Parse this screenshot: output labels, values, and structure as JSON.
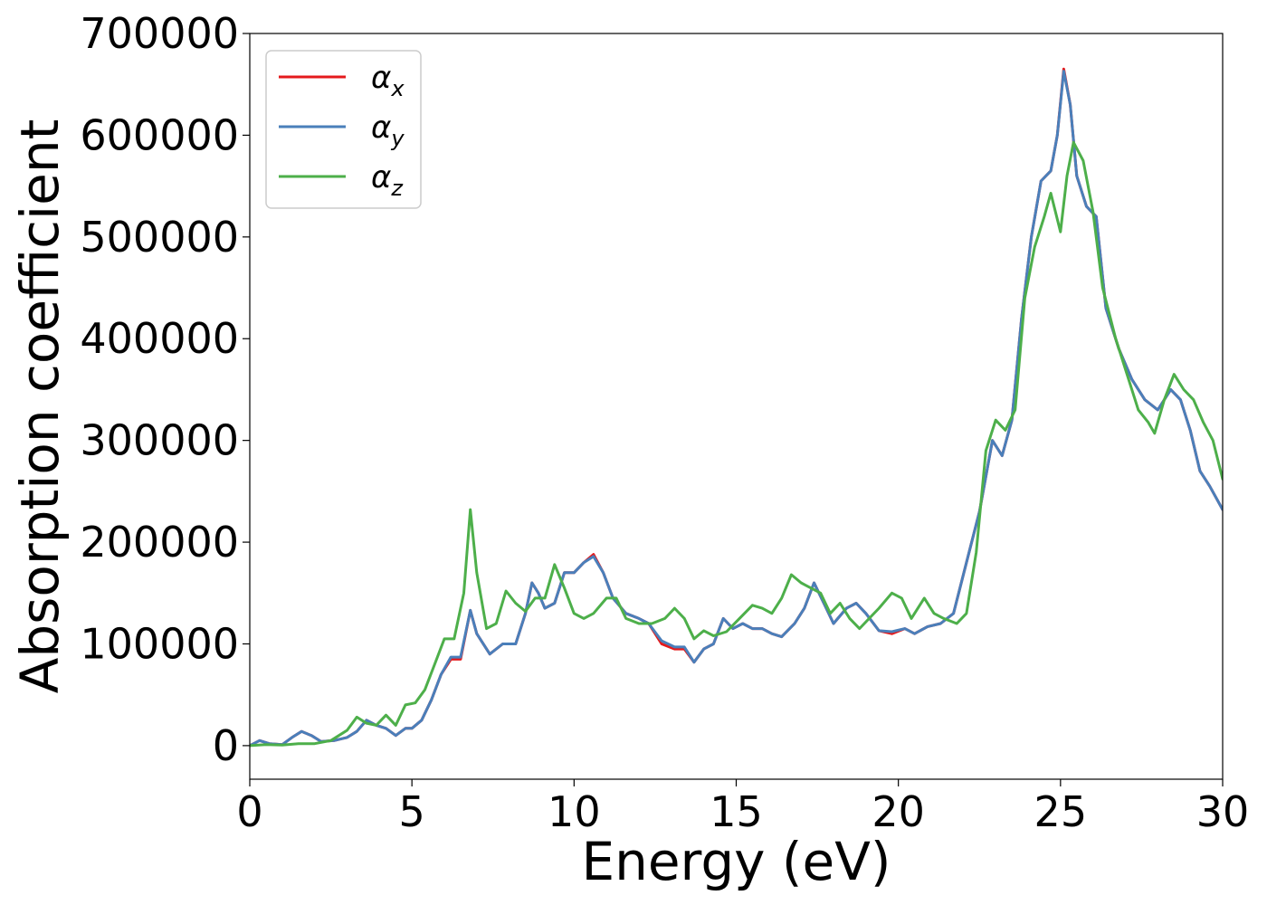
{
  "chart_data": {
    "type": "line",
    "xlabel": "Energy (eV)",
    "ylabel": "Absorption coefficient",
    "xlim": [
      0,
      30
    ],
    "ylim": [
      -33000,
      700000
    ],
    "x_ticks": [
      "0",
      "5",
      "10",
      "15",
      "20",
      "25",
      "30"
    ],
    "y_ticks": [
      "0",
      "100000",
      "200000",
      "300000",
      "400000",
      "500000",
      "600000",
      "700000"
    ],
    "legend_position": "top-left",
    "grid": false,
    "series": [
      {
        "name": "α",
        "subscript": "x",
        "color": "#e41a1c",
        "points": [
          [
            0,
            0
          ],
          [
            0.3,
            5000
          ],
          [
            0.6,
            2000
          ],
          [
            1.0,
            1000
          ],
          [
            1.3,
            8000
          ],
          [
            1.6,
            14000
          ],
          [
            1.9,
            10000
          ],
          [
            2.2,
            4000
          ],
          [
            2.6,
            5000
          ],
          [
            3.0,
            8000
          ],
          [
            3.3,
            14000
          ],
          [
            3.6,
            25000
          ],
          [
            3.9,
            20000
          ],
          [
            4.2,
            17000
          ],
          [
            4.5,
            10000
          ],
          [
            4.8,
            17000
          ],
          [
            5.0,
            17000
          ],
          [
            5.3,
            25000
          ],
          [
            5.6,
            45000
          ],
          [
            5.9,
            70000
          ],
          [
            6.2,
            85000
          ],
          [
            6.5,
            85000
          ],
          [
            6.8,
            133000
          ],
          [
            7.0,
            110000
          ],
          [
            7.4,
            90000
          ],
          [
            7.8,
            100000
          ],
          [
            8.2,
            100000
          ],
          [
            8.5,
            130000
          ],
          [
            8.7,
            160000
          ],
          [
            8.9,
            150000
          ],
          [
            9.1,
            135000
          ],
          [
            9.4,
            140000
          ],
          [
            9.7,
            170000
          ],
          [
            10.0,
            170000
          ],
          [
            10.3,
            180000
          ],
          [
            10.6,
            188000
          ],
          [
            10.9,
            170000
          ],
          [
            11.2,
            145000
          ],
          [
            11.6,
            130000
          ],
          [
            12.0,
            125000
          ],
          [
            12.3,
            120000
          ],
          [
            12.7,
            100000
          ],
          [
            13.1,
            95000
          ],
          [
            13.4,
            95000
          ],
          [
            13.7,
            82000
          ],
          [
            14.0,
            95000
          ],
          [
            14.3,
            100000
          ],
          [
            14.6,
            125000
          ],
          [
            14.9,
            115000
          ],
          [
            15.2,
            120000
          ],
          [
            15.5,
            115000
          ],
          [
            15.8,
            115000
          ],
          [
            16.1,
            110000
          ],
          [
            16.4,
            107000
          ],
          [
            16.8,
            120000
          ],
          [
            17.1,
            135000
          ],
          [
            17.4,
            160000
          ],
          [
            17.7,
            140000
          ],
          [
            18.0,
            120000
          ],
          [
            18.4,
            135000
          ],
          [
            18.7,
            140000
          ],
          [
            19.0,
            130000
          ],
          [
            19.4,
            113000
          ],
          [
            19.8,
            110000
          ],
          [
            20.2,
            115000
          ],
          [
            20.5,
            110000
          ],
          [
            20.9,
            117000
          ],
          [
            21.3,
            120000
          ],
          [
            21.7,
            130000
          ],
          [
            22.1,
            180000
          ],
          [
            22.5,
            230000
          ],
          [
            22.9,
            300000
          ],
          [
            23.2,
            285000
          ],
          [
            23.5,
            320000
          ],
          [
            23.8,
            420000
          ],
          [
            24.1,
            500000
          ],
          [
            24.4,
            555000
          ],
          [
            24.7,
            565000
          ],
          [
            24.9,
            600000
          ],
          [
            25.1,
            665000
          ],
          [
            25.3,
            630000
          ],
          [
            25.5,
            560000
          ],
          [
            25.8,
            530000
          ],
          [
            26.1,
            520000
          ],
          [
            26.4,
            430000
          ],
          [
            26.8,
            390000
          ],
          [
            27.2,
            360000
          ],
          [
            27.6,
            340000
          ],
          [
            28.0,
            330000
          ],
          [
            28.4,
            350000
          ],
          [
            28.7,
            340000
          ],
          [
            29.0,
            310000
          ],
          [
            29.3,
            270000
          ],
          [
            29.6,
            255000
          ],
          [
            30.0,
            232000
          ]
        ]
      },
      {
        "name": "α",
        "subscript": "y",
        "color": "#4a7fba",
        "points": [
          [
            0,
            0
          ],
          [
            0.3,
            5000
          ],
          [
            0.6,
            2000
          ],
          [
            1.0,
            1000
          ],
          [
            1.3,
            8000
          ],
          [
            1.6,
            14000
          ],
          [
            1.9,
            10000
          ],
          [
            2.2,
            4000
          ],
          [
            2.6,
            5000
          ],
          [
            3.0,
            8000
          ],
          [
            3.3,
            14000
          ],
          [
            3.6,
            25000
          ],
          [
            3.9,
            20000
          ],
          [
            4.2,
            17000
          ],
          [
            4.5,
            10000
          ],
          [
            4.8,
            17000
          ],
          [
            5.0,
            17000
          ],
          [
            5.3,
            25000
          ],
          [
            5.6,
            45000
          ],
          [
            5.9,
            70000
          ],
          [
            6.2,
            87000
          ],
          [
            6.5,
            87000
          ],
          [
            6.8,
            133000
          ],
          [
            7.0,
            110000
          ],
          [
            7.4,
            90000
          ],
          [
            7.8,
            100000
          ],
          [
            8.2,
            100000
          ],
          [
            8.5,
            130000
          ],
          [
            8.7,
            160000
          ],
          [
            8.9,
            150000
          ],
          [
            9.1,
            135000
          ],
          [
            9.4,
            140000
          ],
          [
            9.7,
            170000
          ],
          [
            10.0,
            170000
          ],
          [
            10.3,
            180000
          ],
          [
            10.6,
            186000
          ],
          [
            10.9,
            170000
          ],
          [
            11.2,
            145000
          ],
          [
            11.6,
            130000
          ],
          [
            12.0,
            125000
          ],
          [
            12.3,
            120000
          ],
          [
            12.7,
            103000
          ],
          [
            13.1,
            97000
          ],
          [
            13.4,
            97000
          ],
          [
            13.7,
            82000
          ],
          [
            14.0,
            95000
          ],
          [
            14.3,
            100000
          ],
          [
            14.6,
            125000
          ],
          [
            14.9,
            115000
          ],
          [
            15.2,
            120000
          ],
          [
            15.5,
            115000
          ],
          [
            15.8,
            115000
          ],
          [
            16.1,
            110000
          ],
          [
            16.4,
            107000
          ],
          [
            16.8,
            120000
          ],
          [
            17.1,
            135000
          ],
          [
            17.4,
            160000
          ],
          [
            17.7,
            140000
          ],
          [
            18.0,
            120000
          ],
          [
            18.4,
            135000
          ],
          [
            18.7,
            140000
          ],
          [
            19.0,
            130000
          ],
          [
            19.4,
            113000
          ],
          [
            19.8,
            112000
          ],
          [
            20.2,
            115000
          ],
          [
            20.5,
            110000
          ],
          [
            20.9,
            117000
          ],
          [
            21.3,
            120000
          ],
          [
            21.7,
            130000
          ],
          [
            22.1,
            180000
          ],
          [
            22.5,
            230000
          ],
          [
            22.9,
            300000
          ],
          [
            23.2,
            285000
          ],
          [
            23.5,
            320000
          ],
          [
            23.8,
            420000
          ],
          [
            24.1,
            500000
          ],
          [
            24.4,
            555000
          ],
          [
            24.7,
            565000
          ],
          [
            24.9,
            600000
          ],
          [
            25.1,
            663000
          ],
          [
            25.3,
            630000
          ],
          [
            25.5,
            560000
          ],
          [
            25.8,
            530000
          ],
          [
            26.1,
            520000
          ],
          [
            26.4,
            430000
          ],
          [
            26.8,
            390000
          ],
          [
            27.2,
            360000
          ],
          [
            27.6,
            340000
          ],
          [
            28.0,
            330000
          ],
          [
            28.4,
            350000
          ],
          [
            28.7,
            340000
          ],
          [
            29.0,
            310000
          ],
          [
            29.3,
            270000
          ],
          [
            29.6,
            255000
          ],
          [
            30.0,
            232000
          ]
        ]
      },
      {
        "name": "α",
        "subscript": "z",
        "color": "#4daf4a",
        "points": [
          [
            0,
            0
          ],
          [
            0.5,
            1000
          ],
          [
            1.0,
            500
          ],
          [
            1.5,
            2000
          ],
          [
            2.0,
            2000
          ],
          [
            2.5,
            5000
          ],
          [
            3.0,
            15000
          ],
          [
            3.3,
            28000
          ],
          [
            3.6,
            22000
          ],
          [
            3.9,
            20000
          ],
          [
            4.2,
            30000
          ],
          [
            4.5,
            20000
          ],
          [
            4.8,
            40000
          ],
          [
            5.1,
            42000
          ],
          [
            5.4,
            55000
          ],
          [
            5.7,
            80000
          ],
          [
            6.0,
            105000
          ],
          [
            6.3,
            105000
          ],
          [
            6.6,
            150000
          ],
          [
            6.8,
            232000
          ],
          [
            7.0,
            170000
          ],
          [
            7.3,
            115000
          ],
          [
            7.6,
            120000
          ],
          [
            7.9,
            152000
          ],
          [
            8.2,
            140000
          ],
          [
            8.5,
            132000
          ],
          [
            8.8,
            145000
          ],
          [
            9.1,
            145000
          ],
          [
            9.4,
            178000
          ],
          [
            9.7,
            155000
          ],
          [
            10.0,
            130000
          ],
          [
            10.3,
            125000
          ],
          [
            10.6,
            130000
          ],
          [
            11.0,
            145000
          ],
          [
            11.3,
            145000
          ],
          [
            11.6,
            125000
          ],
          [
            12.0,
            120000
          ],
          [
            12.4,
            120000
          ],
          [
            12.8,
            125000
          ],
          [
            13.1,
            135000
          ],
          [
            13.4,
            125000
          ],
          [
            13.7,
            105000
          ],
          [
            14.0,
            113000
          ],
          [
            14.3,
            108000
          ],
          [
            14.7,
            112000
          ],
          [
            15.1,
            125000
          ],
          [
            15.5,
            138000
          ],
          [
            15.8,
            135000
          ],
          [
            16.1,
            130000
          ],
          [
            16.4,
            145000
          ],
          [
            16.7,
            168000
          ],
          [
            17.0,
            160000
          ],
          [
            17.3,
            155000
          ],
          [
            17.6,
            150000
          ],
          [
            17.9,
            130000
          ],
          [
            18.2,
            140000
          ],
          [
            18.5,
            125000
          ],
          [
            18.8,
            115000
          ],
          [
            19.1,
            125000
          ],
          [
            19.4,
            135000
          ],
          [
            19.8,
            150000
          ],
          [
            20.1,
            145000
          ],
          [
            20.4,
            125000
          ],
          [
            20.8,
            145000
          ],
          [
            21.1,
            130000
          ],
          [
            21.4,
            125000
          ],
          [
            21.8,
            120000
          ],
          [
            22.1,
            130000
          ],
          [
            22.4,
            190000
          ],
          [
            22.7,
            290000
          ],
          [
            23.0,
            320000
          ],
          [
            23.3,
            310000
          ],
          [
            23.6,
            330000
          ],
          [
            23.9,
            440000
          ],
          [
            24.2,
            490000
          ],
          [
            24.5,
            520000
          ],
          [
            24.7,
            543000
          ],
          [
            25.0,
            505000
          ],
          [
            25.2,
            560000
          ],
          [
            25.4,
            593000
          ],
          [
            25.7,
            575000
          ],
          [
            26.0,
            525000
          ],
          [
            26.3,
            450000
          ],
          [
            26.7,
            400000
          ],
          [
            27.1,
            360000
          ],
          [
            27.4,
            330000
          ],
          [
            27.7,
            318000
          ],
          [
            27.9,
            307000
          ],
          [
            28.2,
            340000
          ],
          [
            28.5,
            365000
          ],
          [
            28.8,
            350000
          ],
          [
            29.1,
            340000
          ],
          [
            29.4,
            318000
          ],
          [
            29.7,
            300000
          ],
          [
            30.0,
            262000
          ]
        ]
      }
    ]
  }
}
